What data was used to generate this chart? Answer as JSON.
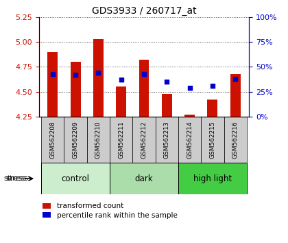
{
  "title": "GDS3933 / 260717_at",
  "samples": [
    "GSM562208",
    "GSM562209",
    "GSM562210",
    "GSM562211",
    "GSM562212",
    "GSM562213",
    "GSM562214",
    "GSM562215",
    "GSM562216"
  ],
  "transformed_counts": [
    4.9,
    4.8,
    5.03,
    4.55,
    4.82,
    4.48,
    4.27,
    4.42,
    4.68
  ],
  "percentile_ranks": [
    43,
    42,
    44,
    37,
    43,
    35,
    29,
    31,
    38
  ],
  "ylim_left": [
    4.25,
    5.25
  ],
  "ylim_right": [
    0,
    100
  ],
  "yticks_left": [
    4.25,
    4.5,
    4.75,
    5.0,
    5.25
  ],
  "yticks_right": [
    0,
    25,
    50,
    75,
    100
  ],
  "groups": [
    {
      "label": "control",
      "indices": [
        0,
        1,
        2
      ],
      "color": "#cceecc"
    },
    {
      "label": "dark",
      "indices": [
        3,
        4,
        5
      ],
      "color": "#aaddaa"
    },
    {
      "label": "high light",
      "indices": [
        6,
        7,
        8
      ],
      "color": "#44cc44"
    }
  ],
  "stress_label": "stress",
  "bar_color": "#cc1100",
  "dot_color": "#0000cc",
  "bar_width": 0.45,
  "bar_bottom": 4.25,
  "grid_color": "#888888",
  "background_color": "#ffffff",
  "left_axis_color": "#cc1100",
  "right_axis_color": "#0000cc",
  "sample_box_color": "#cccccc",
  "legend_red_label": "transformed count",
  "legend_blue_label": "percentile rank within the sample"
}
